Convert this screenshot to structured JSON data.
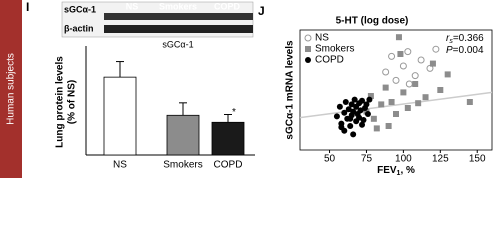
{
  "side_label": "Human subjects",
  "panels": [
    "I",
    "J"
  ],
  "blot": {
    "rows": [
      "sGCα-1",
      "β-actin"
    ],
    "columns": [
      "NS",
      "Smokers",
      "COPD"
    ],
    "caption": "sGCα-1"
  },
  "chart_data": [
    {
      "type": "bar",
      "ylabel": [
        "Lung protein levels",
        "(% of NS)"
      ],
      "categories": [
        "NS",
        "Smokers",
        "COPD"
      ],
      "values": [
        100,
        51,
        42
      ],
      "errors": [
        20,
        16,
        10
      ],
      "colors": [
        "#ffffff",
        "#8c8c8c",
        "#1a1a1a"
      ],
      "value_markers": [
        null,
        null,
        "*"
      ],
      "ylim": [
        0,
        140
      ]
    },
    {
      "type": "scatter",
      "title": "5-HT (log dose)",
      "ylabel": "sGCα-1 mRNA levels",
      "xlabel": {
        "text": "FEV",
        "subscript": "1",
        "suffix": ", %"
      },
      "xlim": [
        30,
        160
      ],
      "xticks": [
        50,
        75,
        100,
        125,
        150
      ],
      "ylim": [
        0,
        10
      ],
      "legend": "upper left",
      "stats": [
        {
          "symbol": "r",
          "subscript": "s",
          "value": "=0.366"
        },
        {
          "symbol": "P",
          "value": "=0.004"
        }
      ],
      "fit_line": {
        "x": [
          30,
          160
        ],
        "y": [
          2.7,
          4.8
        ],
        "color": "#cccccc"
      },
      "series": [
        {
          "name": "NS",
          "marker": "open-circle",
          "color": "#999999",
          "x": [
            88,
            92,
            95,
            100,
            103,
            108,
            112,
            118,
            122,
            104
          ],
          "values": [
            6.5,
            7.8,
            5.8,
            7.0,
            8.2,
            6.2,
            7.5,
            6.8,
            8.4,
            5.5
          ]
        },
        {
          "name": "Smokers",
          "marker": "square",
          "color": "#8c8c8c",
          "x": [
            75,
            78,
            80,
            85,
            88,
            90,
            92,
            95,
            97,
            100,
            103,
            108,
            110,
            115,
            120,
            125,
            130,
            145,
            98,
            82
          ],
          "values": [
            3.2,
            4.5,
            2.6,
            3.8,
            5.2,
            2.0,
            4.0,
            3.0,
            9.4,
            4.8,
            3.5,
            5.5,
            3.9,
            4.4,
            7.2,
            5.0,
            6.3,
            4.0,
            8.0,
            1.8
          ]
        },
        {
          "name": "COPD",
          "marker": "circle",
          "color": "#000000",
          "x": [
            55,
            57,
            58,
            60,
            61,
            62,
            63,
            64,
            65,
            65,
            66,
            67,
            68,
            68,
            69,
            70,
            70,
            71,
            72,
            73,
            74,
            75,
            76,
            77,
            60,
            66,
            72,
            58,
            64
          ],
          "values": [
            2.8,
            3.6,
            2.2,
            3.1,
            4.0,
            2.6,
            3.4,
            2.0,
            3.8,
            2.9,
            3.2,
            4.2,
            2.4,
            3.6,
            3.0,
            3.9,
            2.7,
            3.3,
            4.1,
            2.5,
            3.5,
            3.8,
            3.0,
            4.2,
            1.6,
            1.3,
            2.1,
            1.9,
            2.6
          ]
        }
      ]
    }
  ]
}
